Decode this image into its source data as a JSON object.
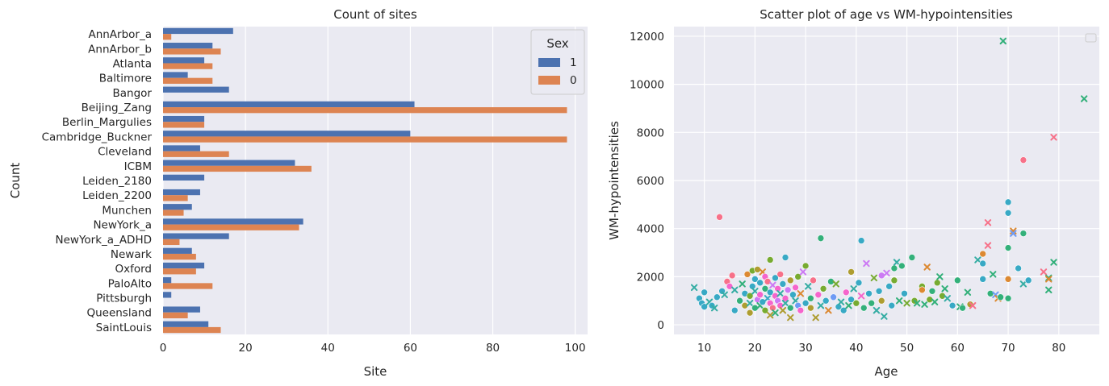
{
  "chart_data": [
    {
      "type": "bar",
      "orientation": "horizontal",
      "title": "Count of sites",
      "xlabel": "Site",
      "ylabel": "Count",
      "xlim": [
        0,
        103
      ],
      "xticks": [
        0,
        20,
        40,
        60,
        80,
        100
      ],
      "grid": true,
      "legend": {
        "title": "Sex",
        "position": "top-right"
      },
      "categories": [
        "AnnArbor_a",
        "AnnArbor_b",
        "Atlanta",
        "Baltimore",
        "Bangor",
        "Beijing_Zang",
        "Berlin_Margulies",
        "Cambridge_Buckner",
        "Cleveland",
        "ICBM",
        "Leiden_2180",
        "Leiden_2200",
        "Munchen",
        "NewYork_a",
        "NewYork_a_ADHD",
        "Newark",
        "Oxford",
        "PaloAlto",
        "Pittsburgh",
        "Queensland",
        "SaintLouis"
      ],
      "series": [
        {
          "name": "1",
          "color": "#4c72b0",
          "values": [
            17,
            12,
            10,
            6,
            16,
            61,
            10,
            60,
            9,
            32,
            10,
            9,
            7,
            34,
            16,
            7,
            10,
            2,
            2,
            9,
            11
          ]
        },
        {
          "name": "0",
          "color": "#dd8452",
          "values": [
            2,
            14,
            12,
            12,
            0,
            98,
            10,
            98,
            16,
            36,
            0,
            6,
            5,
            33,
            4,
            8,
            8,
            12,
            0,
            6,
            14
          ]
        }
      ]
    },
    {
      "type": "scatter",
      "title": "Scatter plot of age vs WM-hypointensities",
      "xlabel": "Age",
      "ylabel": "WM-hypointensities",
      "xlim": [
        4,
        88
      ],
      "ylim": [
        -400,
        12400
      ],
      "xticks": [
        10,
        20,
        30,
        40,
        50,
        60,
        70,
        80
      ],
      "yticks": [
        0,
        2000,
        4000,
        6000,
        8000,
        10000,
        12000
      ],
      "grid": true,
      "legend": {
        "position": "top-right",
        "entries": []
      },
      "palette": [
        "#f77189",
        "#dc8932",
        "#ae9d31",
        "#77ab31",
        "#33b07a",
        "#36ada4",
        "#38a9c5",
        "#6e9bf4",
        "#cc7af4",
        "#f565cc"
      ],
      "points": [
        {
          "x": 8,
          "y": 1550,
          "m": "x",
          "c": 5
        },
        {
          "x": 9,
          "y": 1100,
          "m": "o",
          "c": 6
        },
        {
          "x": 9.5,
          "y": 900,
          "m": "o",
          "c": 6
        },
        {
          "x": 10,
          "y": 750,
          "m": "o",
          "c": 6
        },
        {
          "x": 10,
          "y": 1350,
          "m": "o",
          "c": 6
        },
        {
          "x": 11,
          "y": 950,
          "m": "x",
          "c": 5
        },
        {
          "x": 11.5,
          "y": 800,
          "m": "o",
          "c": 6
        },
        {
          "x": 12,
          "y": 700,
          "m": "x",
          "c": 5
        },
        {
          "x": 12.5,
          "y": 1150,
          "m": "o",
          "c": 6
        },
        {
          "x": 13,
          "y": 4480,
          "m": "o",
          "c": 0
        },
        {
          "x": 13.5,
          "y": 1400,
          "m": "o",
          "c": 6
        },
        {
          "x": 14,
          "y": 1250,
          "m": "x",
          "c": 5
        },
        {
          "x": 14.5,
          "y": 1800,
          "m": "o",
          "c": 0
        },
        {
          "x": 15,
          "y": 1600,
          "m": "o",
          "c": 9
        },
        {
          "x": 15.5,
          "y": 2050,
          "m": "o",
          "c": 0
        },
        {
          "x": 16,
          "y": 1450,
          "m": "x",
          "c": 5
        },
        {
          "x": 16,
          "y": 600,
          "m": "o",
          "c": 6
        },
        {
          "x": 17,
          "y": 1000,
          "m": "o",
          "c": 4
        },
        {
          "x": 17.5,
          "y": 1700,
          "m": "x",
          "c": 4
        },
        {
          "x": 18,
          "y": 1300,
          "m": "o",
          "c": 6
        },
        {
          "x": 18,
          "y": 800,
          "m": "o",
          "c": 2
        },
        {
          "x": 18.5,
          "y": 2100,
          "m": "o",
          "c": 1
        },
        {
          "x": 19,
          "y": 1200,
          "m": "o",
          "c": 3
        },
        {
          "x": 19,
          "y": 900,
          "m": "x",
          "c": 5
        },
        {
          "x": 19,
          "y": 500,
          "m": "o",
          "c": 2
        },
        {
          "x": 19.5,
          "y": 1600,
          "m": "o",
          "c": 6
        },
        {
          "x": 19.5,
          "y": 2250,
          "m": "o",
          "c": 3
        },
        {
          "x": 20,
          "y": 700,
          "m": "o",
          "c": 4
        },
        {
          "x": 20,
          "y": 1400,
          "m": "x",
          "c": 5
        },
        {
          "x": 20,
          "y": 1900,
          "m": "o",
          "c": 6
        },
        {
          "x": 20.5,
          "y": 1050,
          "m": "o",
          "c": 8
        },
        {
          "x": 20.5,
          "y": 2300,
          "m": "o",
          "c": 2
        },
        {
          "x": 21,
          "y": 800,
          "m": "x",
          "c": 4
        },
        {
          "x": 21,
          "y": 1250,
          "m": "o",
          "c": 9
        },
        {
          "x": 21,
          "y": 1750,
          "m": "o",
          "c": 6
        },
        {
          "x": 21.5,
          "y": 950,
          "m": "o",
          "c": 6
        },
        {
          "x": 21.5,
          "y": 2200,
          "m": "x",
          "c": 1
        },
        {
          "x": 22,
          "y": 600,
          "m": "o",
          "c": 3
        },
        {
          "x": 22,
          "y": 1500,
          "m": "o",
          "c": 4
        },
        {
          "x": 22,
          "y": 2000,
          "m": "o",
          "c": 9
        },
        {
          "x": 22.5,
          "y": 1100,
          "m": "x",
          "c": 6
        },
        {
          "x": 22.5,
          "y": 1800,
          "m": "o",
          "c": 0
        },
        {
          "x": 23,
          "y": 400,
          "m": "x",
          "c": 2
        },
        {
          "x": 23,
          "y": 900,
          "m": "o",
          "c": 9
        },
        {
          "x": 23,
          "y": 1350,
          "m": "o",
          "c": 6
        },
        {
          "x": 23,
          "y": 2700,
          "m": "o",
          "c": 3
        },
        {
          "x": 23.5,
          "y": 1650,
          "m": "x",
          "c": 8
        },
        {
          "x": 23.5,
          "y": 700,
          "m": "o",
          "c": 0
        },
        {
          "x": 24,
          "y": 1200,
          "m": "o",
          "c": 9
        },
        {
          "x": 24,
          "y": 1950,
          "m": "o",
          "c": 6
        },
        {
          "x": 24,
          "y": 500,
          "m": "x",
          "c": 4
        },
        {
          "x": 24.5,
          "y": 1000,
          "m": "o",
          "c": 8
        },
        {
          "x": 24.5,
          "y": 1500,
          "m": "o",
          "c": 9
        },
        {
          "x": 25,
          "y": 800,
          "m": "o",
          "c": 9
        },
        {
          "x": 25,
          "y": 1300,
          "m": "x",
          "c": 5
        },
        {
          "x": 25,
          "y": 2100,
          "m": "o",
          "c": 0
        },
        {
          "x": 25.5,
          "y": 1700,
          "m": "o",
          "c": 6
        },
        {
          "x": 25.5,
          "y": 600,
          "m": "x",
          "c": 2
        },
        {
          "x": 26,
          "y": 2800,
          "m": "o",
          "c": 6
        },
        {
          "x": 26,
          "y": 1100,
          "m": "o",
          "c": 9
        },
        {
          "x": 26,
          "y": 900,
          "m": "x",
          "c": 5
        },
        {
          "x": 26.5,
          "y": 1450,
          "m": "o",
          "c": 8
        },
        {
          "x": 27,
          "y": 700,
          "m": "o",
          "c": 4
        },
        {
          "x": 27,
          "y": 1850,
          "m": "o",
          "c": 2
        },
        {
          "x": 27,
          "y": 300,
          "m": "x",
          "c": 2
        },
        {
          "x": 27.5,
          "y": 1250,
          "m": "o",
          "c": 6
        },
        {
          "x": 28,
          "y": 1000,
          "m": "x",
          "c": 5
        },
        {
          "x": 28,
          "y": 1550,
          "m": "o",
          "c": 9
        },
        {
          "x": 28.5,
          "y": 2000,
          "m": "o",
          "c": 3
        },
        {
          "x": 28.5,
          "y": 800,
          "m": "o",
          "c": 7
        },
        {
          "x": 29,
          "y": 1300,
          "m": "x",
          "c": 1
        },
        {
          "x": 29,
          "y": 600,
          "m": "o",
          "c": 9
        },
        {
          "x": 29.5,
          "y": 2200,
          "m": "x",
          "c": 8
        },
        {
          "x": 30,
          "y": 2450,
          "m": "o",
          "c": 3
        },
        {
          "x": 30,
          "y": 900,
          "m": "o",
          "c": 6
        },
        {
          "x": 30.5,
          "y": 1600,
          "m": "x",
          "c": 5
        },
        {
          "x": 31,
          "y": 1100,
          "m": "o",
          "c": 4
        },
        {
          "x": 31,
          "y": 700,
          "m": "o",
          "c": 2
        },
        {
          "x": 31.5,
          "y": 1850,
          "m": "o",
          "c": 0
        },
        {
          "x": 32,
          "y": 300,
          "m": "x",
          "c": 2
        },
        {
          "x": 32.5,
          "y": 1250,
          "m": "o",
          "c": 9
        },
        {
          "x": 33,
          "y": 3600,
          "m": "o",
          "c": 4
        },
        {
          "x": 33,
          "y": 800,
          "m": "x",
          "c": 5
        },
        {
          "x": 33.5,
          "y": 1500,
          "m": "o",
          "c": 3
        },
        {
          "x": 34,
          "y": 1000,
          "m": "o",
          "c": 6
        },
        {
          "x": 34.5,
          "y": 600,
          "m": "x",
          "c": 1
        },
        {
          "x": 35,
          "y": 1800,
          "m": "o",
          "c": 4
        },
        {
          "x": 35.5,
          "y": 1150,
          "m": "o",
          "c": 7
        },
        {
          "x": 36,
          "y": 1700,
          "m": "x",
          "c": 3
        },
        {
          "x": 36.5,
          "y": 750,
          "m": "o",
          "c": 6
        },
        {
          "x": 37,
          "y": 950,
          "m": "x",
          "c": 5
        },
        {
          "x": 37.5,
          "y": 600,
          "m": "o",
          "c": 6
        },
        {
          "x": 38,
          "y": 1350,
          "m": "o",
          "c": 9
        },
        {
          "x": 38.5,
          "y": 800,
          "m": "x",
          "c": 4
        },
        {
          "x": 39,
          "y": 2200,
          "m": "o",
          "c": 2
        },
        {
          "x": 39,
          "y": 1050,
          "m": "o",
          "c": 6
        },
        {
          "x": 39.5,
          "y": 1500,
          "m": "x",
          "c": 5
        },
        {
          "x": 40,
          "y": 900,
          "m": "o",
          "c": 3
        },
        {
          "x": 40.5,
          "y": 1750,
          "m": "o",
          "c": 6
        },
        {
          "x": 41,
          "y": 3500,
          "m": "o",
          "c": 6
        },
        {
          "x": 41,
          "y": 1200,
          "m": "x",
          "c": 9
        },
        {
          "x": 41.5,
          "y": 700,
          "m": "o",
          "c": 4
        },
        {
          "x": 42,
          "y": 2550,
          "m": "x",
          "c": 8
        },
        {
          "x": 42.5,
          "y": 1300,
          "m": "o",
          "c": 6
        },
        {
          "x": 43,
          "y": 900,
          "m": "o",
          "c": 4
        },
        {
          "x": 43.5,
          "y": 1950,
          "m": "x",
          "c": 3
        },
        {
          "x": 44,
          "y": 600,
          "m": "x",
          "c": 5
        },
        {
          "x": 44.5,
          "y": 1400,
          "m": "o",
          "c": 6
        },
        {
          "x": 45,
          "y": 2050,
          "m": "o",
          "c": 8
        },
        {
          "x": 45,
          "y": 1000,
          "m": "o",
          "c": 2
        },
        {
          "x": 45.5,
          "y": 350,
          "m": "x",
          "c": 5
        },
        {
          "x": 46,
          "y": 2150,
          "m": "x",
          "c": 8
        },
        {
          "x": 46.5,
          "y": 1600,
          "m": "o",
          "c": 6
        },
        {
          "x": 47,
          "y": 800,
          "m": "o",
          "c": 6
        },
        {
          "x": 47.5,
          "y": 2350,
          "m": "o",
          "c": 4
        },
        {
          "x": 47.5,
          "y": 1850,
          "m": "o",
          "c": 3
        },
        {
          "x": 48,
          "y": 2600,
          "m": "x",
          "c": 5
        },
        {
          "x": 48.5,
          "y": 1000,
          "m": "x",
          "c": 4
        },
        {
          "x": 49,
          "y": 2450,
          "m": "o",
          "c": 4
        },
        {
          "x": 49.5,
          "y": 1300,
          "m": "o",
          "c": 6
        },
        {
          "x": 50,
          "y": 900,
          "m": "x",
          "c": 3
        },
        {
          "x": 51,
          "y": 2800,
          "m": "o",
          "c": 4
        },
        {
          "x": 51.5,
          "y": 1000,
          "m": "o",
          "c": 3
        },
        {
          "x": 52,
          "y": 900,
          "m": "x",
          "c": 4
        },
        {
          "x": 53,
          "y": 1600,
          "m": "o",
          "c": 3
        },
        {
          "x": 53,
          "y": 1450,
          "m": "o",
          "c": 1
        },
        {
          "x": 53.5,
          "y": 850,
          "m": "x",
          "c": 4
        },
        {
          "x": 54,
          "y": 2400,
          "m": "x",
          "c": 1
        },
        {
          "x": 54.5,
          "y": 1050,
          "m": "o",
          "c": 3
        },
        {
          "x": 55,
          "y": 1400,
          "m": "o",
          "c": 4
        },
        {
          "x": 55.5,
          "y": 950,
          "m": "x",
          "c": 4
        },
        {
          "x": 56,
          "y": 1750,
          "m": "o",
          "c": 3
        },
        {
          "x": 56.5,
          "y": 2000,
          "m": "x",
          "c": 4
        },
        {
          "x": 57,
          "y": 1200,
          "m": "o",
          "c": 3
        },
        {
          "x": 57.5,
          "y": 1500,
          "m": "x",
          "c": 4
        },
        {
          "x": 58,
          "y": 1100,
          "m": "x",
          "c": 5
        },
        {
          "x": 59,
          "y": 800,
          "m": "o",
          "c": 6
        },
        {
          "x": 60,
          "y": 1850,
          "m": "o",
          "c": 4
        },
        {
          "x": 60.5,
          "y": 750,
          "m": "x",
          "c": 4
        },
        {
          "x": 61,
          "y": 700,
          "m": "o",
          "c": 4
        },
        {
          "x": 62,
          "y": 1350,
          "m": "x",
          "c": 4
        },
        {
          "x": 62.5,
          "y": 850,
          "m": "o",
          "c": 2
        },
        {
          "x": 63,
          "y": 800,
          "m": "x",
          "c": 0
        },
        {
          "x": 64,
          "y": 2700,
          "m": "x",
          "c": 5
        },
        {
          "x": 65,
          "y": 1900,
          "m": "o",
          "c": 6
        },
        {
          "x": 65,
          "y": 2550,
          "m": "o",
          "c": 6
        },
        {
          "x": 65,
          "y": 2950,
          "m": "o",
          "c": 1
        },
        {
          "x": 66,
          "y": 4250,
          "m": "x",
          "c": 0
        },
        {
          "x": 66,
          "y": 3300,
          "m": "x",
          "c": 0
        },
        {
          "x": 66.5,
          "y": 1300,
          "m": "o",
          "c": 4
        },
        {
          "x": 67,
          "y": 2100,
          "m": "x",
          "c": 4
        },
        {
          "x": 67.5,
          "y": 1250,
          "m": "x",
          "c": 7
        },
        {
          "x": 68,
          "y": 1100,
          "m": "x",
          "c": 1
        },
        {
          "x": 68.5,
          "y": 1150,
          "m": "o",
          "c": 4
        },
        {
          "x": 69,
          "y": 11800,
          "m": "x",
          "c": 4
        },
        {
          "x": 70,
          "y": 5100,
          "m": "o",
          "c": 6
        },
        {
          "x": 70,
          "y": 4650,
          "m": "o",
          "c": 6
        },
        {
          "x": 70,
          "y": 3200,
          "m": "o",
          "c": 4
        },
        {
          "x": 70,
          "y": 1900,
          "m": "o",
          "c": 1
        },
        {
          "x": 70,
          "y": 1100,
          "m": "o",
          "c": 4
        },
        {
          "x": 71,
          "y": 3900,
          "m": "x",
          "c": 1
        },
        {
          "x": 71,
          "y": 3800,
          "m": "x",
          "c": 7
        },
        {
          "x": 72,
          "y": 2350,
          "m": "o",
          "c": 6
        },
        {
          "x": 73,
          "y": 6850,
          "m": "o",
          "c": 0
        },
        {
          "x": 73,
          "y": 3800,
          "m": "o",
          "c": 4
        },
        {
          "x": 73,
          "y": 1700,
          "m": "x",
          "c": 5
        },
        {
          "x": 74,
          "y": 1850,
          "m": "o",
          "c": 6
        },
        {
          "x": 77,
          "y": 2200,
          "m": "x",
          "c": 0
        },
        {
          "x": 78,
          "y": 1950,
          "m": "x",
          "c": 4
        },
        {
          "x": 78,
          "y": 1900,
          "m": "x",
          "c": 1
        },
        {
          "x": 78,
          "y": 1450,
          "m": "x",
          "c": 4
        },
        {
          "x": 79,
          "y": 7800,
          "m": "x",
          "c": 0
        },
        {
          "x": 79,
          "y": 2600,
          "m": "x",
          "c": 4
        },
        {
          "x": 85,
          "y": 9400,
          "m": "x",
          "c": 4
        }
      ]
    }
  ]
}
